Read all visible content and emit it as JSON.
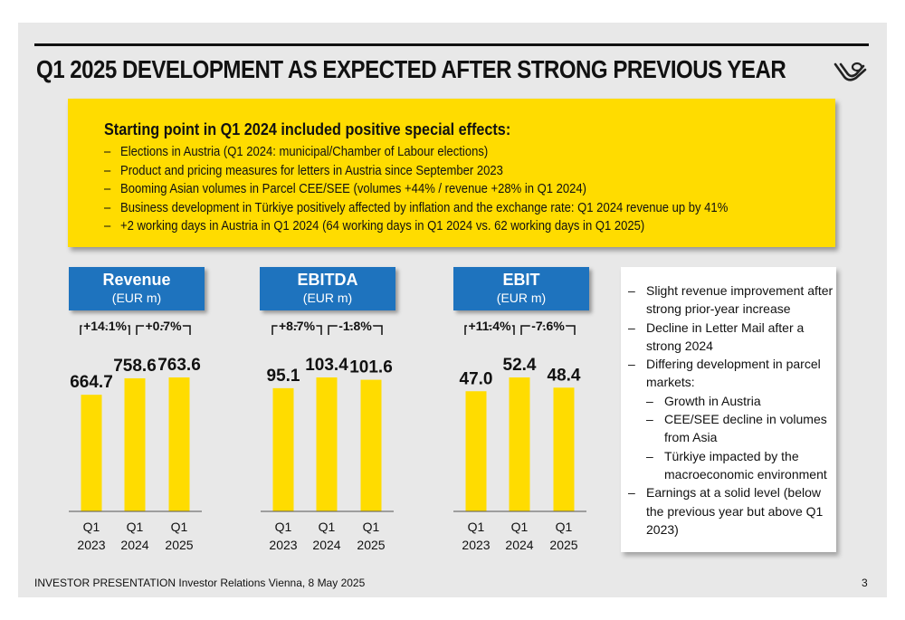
{
  "title": "Q1 2025 DEVELOPMENT AS EXPECTED AFTER STRONG PREVIOUS YEAR",
  "callout": {
    "heading": "Starting point in Q1 2024 included positive special effects:",
    "items": [
      "Elections in Austria (Q1 2024: municipal/Chamber of Labour elections)",
      "Product and pricing measures for letters in Austria since September 2023",
      "Booming Asian volumes in Parcel CEE/SEE (volumes +44% / revenue +28% in Q1 2024)",
      "Business development in Türkiye positively affected by inflation and the exchange rate: Q1 2024 revenue up by 41%",
      "+2 working days in Austria in Q1 2024 (64 working days in Q1 2024 vs. 62 working days in Q1 2025)"
    ]
  },
  "colors": {
    "bar": "#ffdc00",
    "header": "#1e73be",
    "background": "#e8e8e8"
  },
  "chart_data": [
    {
      "type": "bar",
      "title": "Revenue",
      "unit": "(EUR m)",
      "categories": [
        "Q1\n2023",
        "Q1\n2024",
        "Q1\n2025"
      ],
      "values": [
        664.7,
        758.6,
        763.6
      ],
      "value_labels": [
        "664.7",
        "758.6",
        "763.6"
      ],
      "changes": [
        "+14.1%",
        "+0.7%"
      ]
    },
    {
      "type": "bar",
      "title": "EBITDA",
      "unit": "(EUR m)",
      "categories": [
        "Q1\n2023",
        "Q1\n2024",
        "Q1\n2025"
      ],
      "values": [
        95.1,
        103.4,
        101.6
      ],
      "value_labels": [
        "95.1",
        "103.4",
        "101.6"
      ],
      "changes": [
        "+8.7%",
        "-1.8%"
      ]
    },
    {
      "type": "bar",
      "title": "EBIT",
      "unit": "(EUR m)",
      "categories": [
        "Q1\n2023",
        "Q1\n2024",
        "Q1\n2025"
      ],
      "values": [
        47.0,
        52.4,
        48.4
      ],
      "value_labels": [
        "47.0",
        "52.4",
        "48.4"
      ],
      "changes": [
        "+11.4%",
        "-7.6%"
      ]
    }
  ],
  "notes": [
    {
      "level": 1,
      "text": "Slight revenue improvement after strong prior-year increase"
    },
    {
      "level": 1,
      "text": "Decline in Letter Mail after a strong 2024"
    },
    {
      "level": 1,
      "text": "Differing development in parcel markets:"
    },
    {
      "level": 2,
      "text": "Growth in Austria"
    },
    {
      "level": 2,
      "text": "CEE/SEE decline in volumes from Asia"
    },
    {
      "level": 2,
      "text": "Türkiye impacted by the macroeconomic environment"
    },
    {
      "level": 1,
      "text": "Earnings at a solid level (below the previous year but above Q1 2023)"
    }
  ],
  "footer": {
    "text": "INVESTOR PRESENTATION Investor Relations Vienna, 8 May 2025",
    "page": "3"
  },
  "logo_icon": "posthorn-logo-icon"
}
